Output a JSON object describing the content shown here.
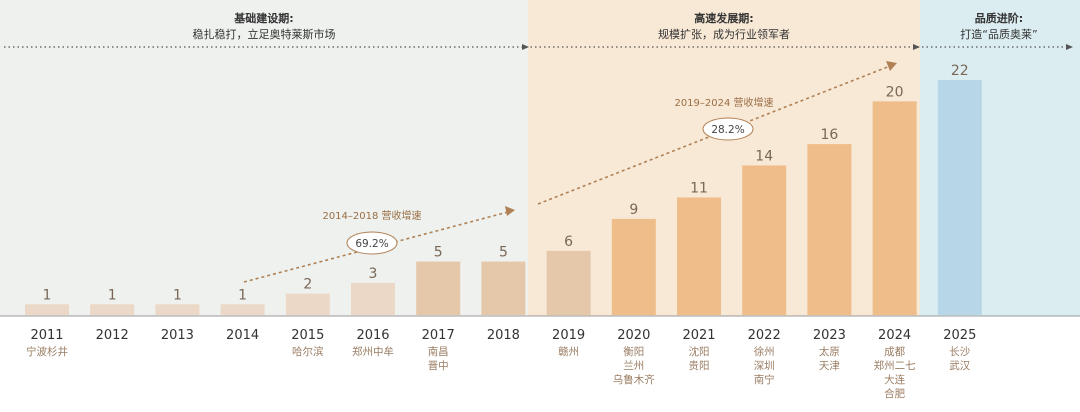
{
  "phases": [
    {
      "title": "基础建设期:",
      "subtitle": "稳扎稳打，立足奥特莱斯市场",
      "bg": "#eef1ee"
    },
    {
      "title": "高速发展期:",
      "subtitle": "规模扩张，成为行业领军者",
      "bg": "#f8e8d6"
    },
    {
      "title": "品质进阶:",
      "subtitle": "打造“品质奥莱”",
      "bg": "#dcedf1"
    }
  ],
  "growth": [
    {
      "label": "2014–2018 营收增速",
      "value": "69.2%"
    },
    {
      "label": "2019–2024 营收增速",
      "value": "28.2%"
    }
  ],
  "colors": {
    "bar_early": "#ecd8c6",
    "bar_mid": "#e5c7aa",
    "bar_growth": "#efbd8a",
    "bar_future": "#b7d7e8",
    "value_text": "#7a6756",
    "label_text": "#9a7d63",
    "arrow": "#b08155"
  },
  "chart_data": {
    "type": "bar",
    "categories": [
      "2011",
      "2012",
      "2013",
      "2014",
      "2015",
      "2016",
      "2017",
      "2018",
      "2019",
      "2020",
      "2021",
      "2022",
      "2023",
      "2024",
      "2025"
    ],
    "values": [
      1,
      1,
      1,
      1,
      2,
      3,
      5,
      5,
      6,
      9,
      11,
      14,
      16,
      20,
      22
    ],
    "cities": [
      [
        "宁波杉井"
      ],
      [],
      [],
      [],
      [
        "哈尔滨"
      ],
      [
        "郑州中牟"
      ],
      [
        "南昌",
        "晋中"
      ],
      [],
      [
        "赣州"
      ],
      [
        "衡阳",
        "兰州",
        "乌鲁木齐"
      ],
      [
        "沈阳",
        "贵阳"
      ],
      [
        "徐州",
        "深圳",
        "南宁"
      ],
      [
        "太原",
        "天津"
      ],
      [
        "成都",
        "郑州二七",
        "大连",
        "合肥"
      ],
      [
        "长沙",
        "武汉"
      ]
    ],
    "ylim": [
      0,
      22
    ]
  }
}
